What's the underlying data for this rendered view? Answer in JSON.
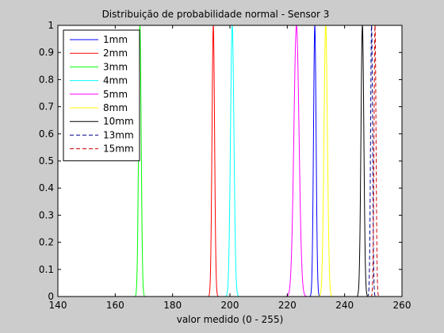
{
  "chart_data": {
    "type": "line",
    "title": "Distribuição de probabilidade normal - Sensor 3",
    "xlabel": "valor medido (0 - 255)",
    "ylabel": "",
    "xlim": [
      140,
      260
    ],
    "ylim": [
      0,
      1
    ],
    "xticks": [
      "140",
      "160",
      "180",
      "200",
      "220",
      "240",
      "260"
    ],
    "yticks": [
      "0",
      "0.1",
      "0.2",
      "0.3",
      "0.4",
      "0.5",
      "0.6",
      "0.7",
      "0.8",
      "0.9",
      "1"
    ],
    "grid": false,
    "legend_position": "top-left",
    "series": [
      {
        "name": "1mm",
        "color": "#0000ff",
        "dash": "solid",
        "mean": 229.6,
        "sigma": 0.45
      },
      {
        "name": "2mm",
        "color": "#ff0000",
        "dash": "solid",
        "mean": 194.2,
        "sigma": 0.45
      },
      {
        "name": "3mm",
        "color": "#00ff00",
        "dash": "solid",
        "mean": 168.6,
        "sigma": 0.45
      },
      {
        "name": "4mm",
        "color": "#00ffff",
        "dash": "solid",
        "mean": 200.8,
        "sigma": 0.6
      },
      {
        "name": "5mm",
        "color": "#ff00ff",
        "dash": "solid",
        "mean": 223.2,
        "sigma": 0.9
      },
      {
        "name": "8mm",
        "color": "#ffff00",
        "dash": "solid",
        "mean": 233.4,
        "sigma": 0.6
      },
      {
        "name": "10mm",
        "color": "#000000",
        "dash": "solid",
        "mean": 246.2,
        "sigma": 0.5
      },
      {
        "name": "13mm",
        "color": "#00008b",
        "dash": "dashed",
        "mean": 249.4,
        "sigma": 0.35
      },
      {
        "name": "15mm",
        "color": "#cc0000",
        "dash": "dashed",
        "mean": 250.6,
        "sigma": 0.35
      }
    ]
  }
}
